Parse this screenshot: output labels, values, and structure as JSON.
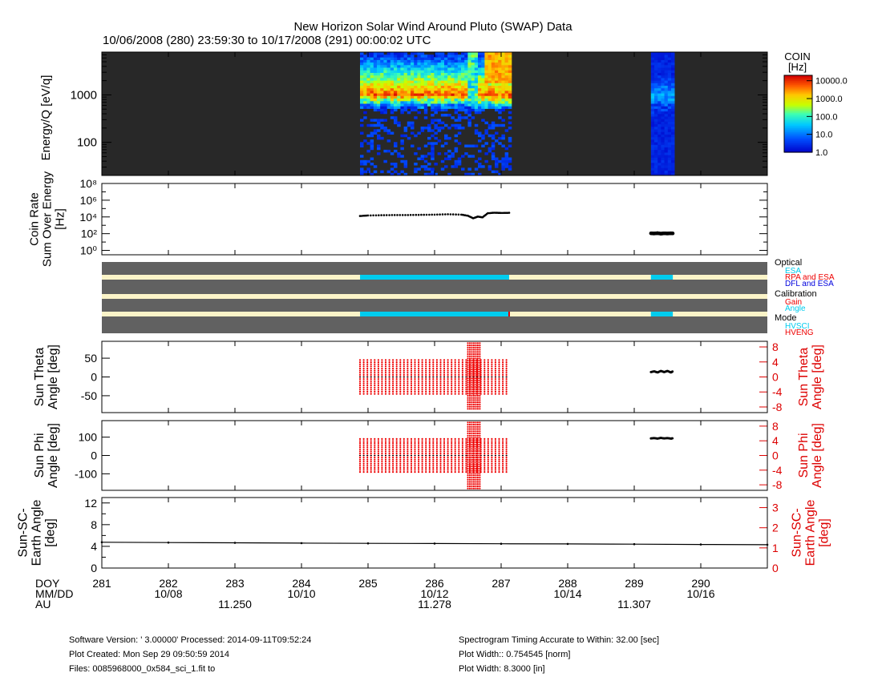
{
  "header": {
    "title": "New Horizon Solar Wind Around Pluto (SWAP) Data",
    "subtitle": "10/06/2008 (280) 23:59:30 to 10/17/2008 (291) 00:00:02 UTC"
  },
  "chart_data": [
    {
      "panel": "spectrogram",
      "type": "heatmap",
      "ylabel": "Energy/Q [eV/q]",
      "yscale": "log",
      "ylim": [
        20,
        8000
      ],
      "yticks": [
        "100",
        "1000"
      ],
      "xlim": [
        281,
        291
      ],
      "colorbar": {
        "title": "COIN",
        "unit": "[Hz]",
        "scale": "log",
        "range": [
          1,
          20000
        ],
        "ticks": [
          "10000.0",
          "1000.0",
          "100.0",
          "10.0",
          "1.0"
        ]
      },
      "data_intervals": [
        {
          "start": 284.88,
          "end": 287.12,
          "peak_energy": [
            900,
            1000
          ],
          "disturbance_doy": 286.55
        },
        {
          "start": 289.25,
          "end": 289.58,
          "peak_energy": [
            950,
            1000
          ]
        }
      ],
      "colors": {
        "fill": "#282828",
        "c_low": "#0000c8",
        "c_high": "#dc0000"
      }
    },
    {
      "panel": "coin_rate",
      "type": "scatter",
      "ylabel": [
        "Coin Rate",
        "Sum Over Energy",
        "[Hz]"
      ],
      "yscale": "log",
      "ylim": [
        0.3,
        100000000
      ],
      "yticks": [
        "10⁸",
        "10⁶",
        "10⁴",
        "10²",
        "10⁰"
      ],
      "segments": [
        {
          "x": [
            284.88,
            285.0,
            285.2,
            285.4,
            285.6,
            285.8,
            286.0,
            286.2,
            286.4,
            286.5,
            286.58,
            286.65,
            286.72,
            286.8,
            286.9,
            287.0,
            287.12
          ],
          "y": [
            13000,
            15000,
            16000,
            17000,
            17000,
            18000,
            19000,
            21000,
            19000,
            14000,
            7000,
            11000,
            9000,
            28000,
            32000,
            30000,
            31000
          ]
        },
        {
          "x": [
            289.25,
            289.3,
            289.35,
            289.4,
            289.45,
            289.5,
            289.55,
            289.58
          ],
          "y": [
            110,
            105,
            115,
            100,
            110,
            105,
            112,
            108
          ]
        }
      ]
    },
    {
      "panel": "flags",
      "type": "bar",
      "rows": [
        {
          "group": "Optical",
          "label": "ESA",
          "color": "#00ccee"
        },
        {
          "group": "Optical",
          "label": "RPA and ESA",
          "color": "#ee0000"
        },
        {
          "group": "Optical",
          "label": "DFL and ESA",
          "color": "#0000dd"
        },
        {
          "group": "Calibration",
          "label": "Gain",
          "color": "#ee0000"
        },
        {
          "group": "Calibration",
          "label": "Angle",
          "color": "#00ccee"
        },
        {
          "group": "Mode",
          "label": "HVSCI",
          "color": "#00ccee"
        },
        {
          "group": "Mode",
          "label": "HVENG",
          "color": "#ee0000"
        }
      ],
      "group_labels": [
        "Optical",
        "Calibration",
        "Mode"
      ],
      "active_intervals": [
        [
          284.88,
          287.12
        ],
        [
          289.25,
          289.58
        ]
      ],
      "colors": {
        "band": "#616161",
        "stripe": "#fbf4c8",
        "active": "#00ccee"
      }
    },
    {
      "panel": "sun_theta",
      "type": "scatter",
      "ylabel": [
        "Sun Theta",
        "Angle [deg]"
      ],
      "ylim": [
        -95,
        95
      ],
      "yticks": [
        "50",
        "0",
        "-50"
      ],
      "ylabel_right": [
        "Sun Theta",
        "Angle [deg]"
      ],
      "ylim_right": [
        -9.5,
        9.5
      ],
      "yticks_right": [
        "8",
        "4",
        "0",
        "-4",
        "-8"
      ],
      "red_block": {
        "start": 284.88,
        "end": 287.12,
        "range": [
          -45,
          45
        ]
      },
      "red_spike": {
        "start": 286.5,
        "end": 286.68,
        "range": [
          -85,
          90
        ]
      },
      "black_trace": {
        "x": [
          289.25,
          289.3,
          289.35,
          289.4,
          289.45,
          289.5,
          289.55,
          289.58
        ],
        "y": [
          13,
          15,
          12,
          16,
          13,
          16,
          12,
          15
        ]
      }
    },
    {
      "panel": "sun_phi",
      "type": "scatter",
      "ylabel": [
        "Sun Phi",
        "Angle [deg]"
      ],
      "ylim": [
        -190,
        190
      ],
      "yticks": [
        "100",
        "0",
        "-100"
      ],
      "ylabel_right": [
        "Sun Phi",
        "Angle [deg]"
      ],
      "ylim_right": [
        -9.5,
        9.5
      ],
      "yticks_right": [
        "8",
        "4",
        "0",
        "-4",
        "-8"
      ],
      "red_block": {
        "start": 284.88,
        "end": 287.12,
        "range": [
          -90,
          90
        ]
      },
      "red_spike": {
        "start": 286.5,
        "end": 286.68,
        "range": [
          -180,
          180
        ]
      },
      "black_trace": {
        "x": [
          289.25,
          289.3,
          289.35,
          289.4,
          289.45,
          289.5,
          289.55,
          289.58
        ],
        "y": [
          93,
          95,
          92,
          96,
          93,
          95,
          92,
          94
        ]
      }
    },
    {
      "panel": "sun_sc_earth",
      "type": "line",
      "ylabel": [
        "Sun-SC-",
        "Earth Angle",
        "[deg]"
      ],
      "ylim": [
        0,
        13
      ],
      "yticks": [
        "12",
        "8",
        "4",
        "0"
      ],
      "ylabel_right": [
        "Sun-SC-",
        "Earth Angle",
        "[deg]"
      ],
      "ylim_right": [
        0,
        3.5
      ],
      "yticks_right": [
        "3",
        "2",
        "1",
        "0"
      ],
      "x": [
        281,
        282,
        283,
        284,
        285,
        286,
        287,
        288,
        289,
        290,
        291
      ],
      "y": [
        4.75,
        4.7,
        4.65,
        4.6,
        4.55,
        4.52,
        4.48,
        4.44,
        4.4,
        4.35,
        4.3
      ]
    }
  ],
  "x_axis": {
    "row_labels": [
      "DOY",
      "MM/DD",
      "AU"
    ],
    "xlim": [
      281,
      291
    ],
    "doy": [
      "281",
      "282",
      "283",
      "284",
      "285",
      "286",
      "287",
      "288",
      "289",
      "290"
    ],
    "mmdd": [
      {
        "doy": 282,
        "label": "10/08"
      },
      {
        "doy": 284,
        "label": "10/10"
      },
      {
        "doy": 286,
        "label": "10/12"
      },
      {
        "doy": 288,
        "label": "10/14"
      },
      {
        "doy": 290,
        "label": "10/16"
      }
    ],
    "au": [
      {
        "doy": 283,
        "label": "11.250"
      },
      {
        "doy": 286,
        "label": "11.278"
      },
      {
        "doy": 289,
        "label": "11.307"
      }
    ]
  },
  "footer": {
    "left": [
      "Software Version:  ' 3.00000'  Processed: 2014-09-11T09:52:24",
      "Plot Created: Mon Sep 29 09:50:59 2014",
      "Files: 0085968000_0x584_sci_1.fit to"
    ],
    "right": [
      "Spectrogram Timing Accurate to Within: 32.00 [sec]",
      "Plot Width:: 0.754545 [norm]",
      "Plot Width: 8.3000 [in]"
    ]
  }
}
